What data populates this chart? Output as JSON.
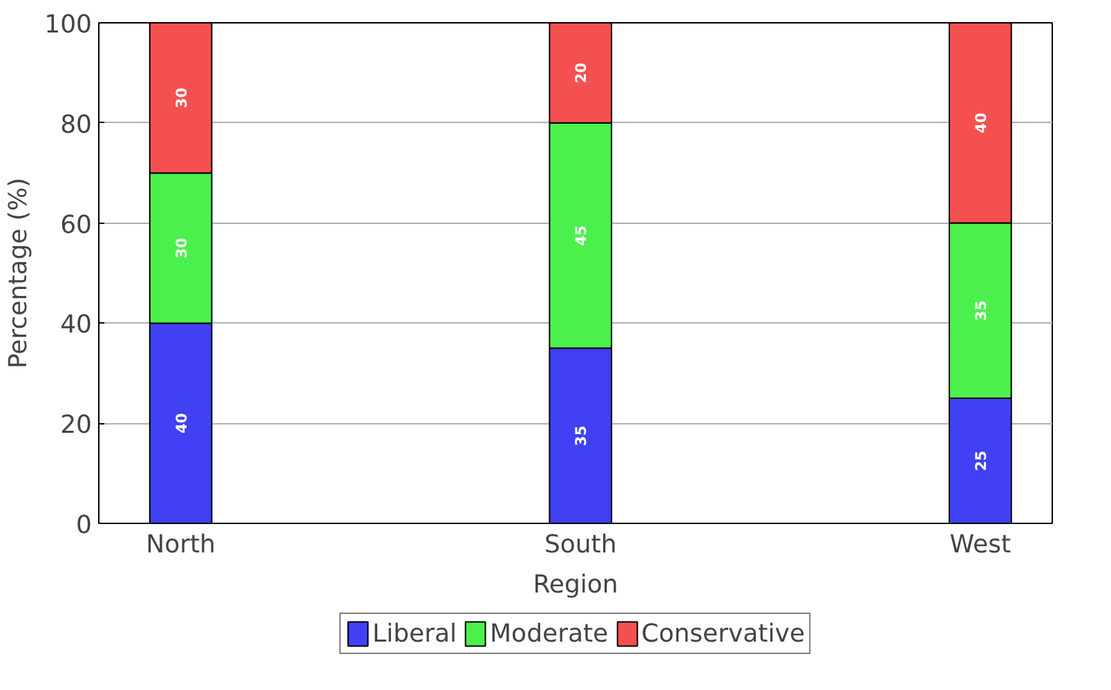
{
  "chart_data": {
    "type": "bar",
    "stacked": true,
    "xlabel": "Region",
    "ylabel": "Percentage (%)",
    "categories": [
      "North",
      "South",
      "West"
    ],
    "series": [
      {
        "name": "Liberal",
        "color": "#4040f5",
        "values": [
          40,
          35,
          25
        ]
      },
      {
        "name": "Moderate",
        "color": "#4cf04c",
        "values": [
          30,
          45,
          35
        ]
      },
      {
        "name": "Conservative",
        "color": "#f55050",
        "values": [
          30,
          20,
          40
        ]
      }
    ],
    "ylim": [
      0,
      100
    ],
    "yticks": [
      0,
      20,
      40,
      60,
      80,
      100
    ],
    "grid": "y",
    "legend": "bottom",
    "data_labels": true
  }
}
